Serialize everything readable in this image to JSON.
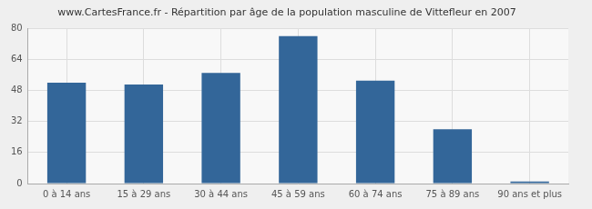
{
  "chart_data": {
    "type": "bar",
    "title": "www.CartesFrance.fr - Répartition par âge de la population masculine de Vittefleur en 2007",
    "categories": [
      "0 à 14 ans",
      "15 à 29 ans",
      "30 à 44 ans",
      "45 à 59 ans",
      "60 à 74 ans",
      "75 à 89 ans",
      "90 ans et plus"
    ],
    "values": [
      52,
      51,
      57,
      76,
      53,
      28,
      1
    ],
    "color": "#336699",
    "ylim": [
      0,
      80
    ],
    "yticks": [
      0,
      16,
      32,
      48,
      64,
      80
    ],
    "grid": true
  }
}
